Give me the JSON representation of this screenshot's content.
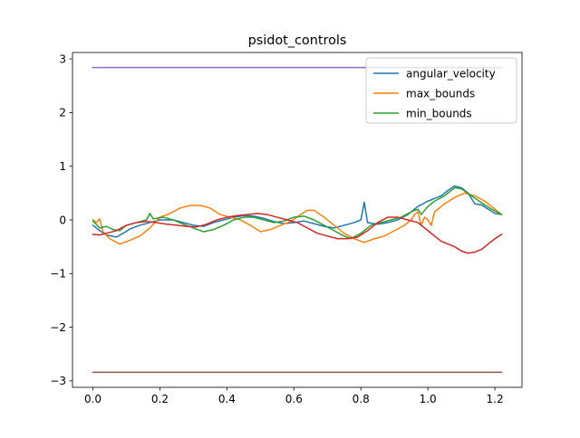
{
  "chart_data": {
    "type": "line",
    "title": "psidot_controls",
    "xlabel": "",
    "ylabel": "",
    "xlim": [
      -0.061,
      1.281
    ],
    "ylim": [
      -3.12,
      3.12
    ],
    "grid": false,
    "legend_position": "top-right",
    "x_ticks": [
      0.0,
      0.2,
      0.4,
      0.6,
      0.8,
      1.0,
      1.2
    ],
    "x_tick_labels": [
      "0.0",
      "0.2",
      "0.4",
      "0.6",
      "0.8",
      "1.0",
      "1.2"
    ],
    "y_ticks": [
      -3,
      -2,
      -1,
      0,
      1,
      2,
      3
    ],
    "y_tick_labels": [
      "−3",
      "−2",
      "−1",
      "0",
      "1",
      "2",
      "3"
    ],
    "legend": [
      "angular_velocity",
      "max_bounds",
      "min_bounds"
    ],
    "series": [
      {
        "name": "angular_velocity",
        "color": "#1f77b4",
        "points": [
          [
            0.0,
            -0.1
          ],
          [
            0.02,
            -0.2
          ],
          [
            0.04,
            -0.28
          ],
          [
            0.07,
            -0.32
          ],
          [
            0.09,
            -0.25
          ],
          [
            0.11,
            -0.17
          ],
          [
            0.14,
            -0.1
          ],
          [
            0.17,
            -0.05
          ],
          [
            0.2,
            0.0
          ],
          [
            0.24,
            0.0
          ],
          [
            0.27,
            -0.05
          ],
          [
            0.3,
            -0.1
          ],
          [
            0.33,
            -0.12
          ],
          [
            0.36,
            -0.05
          ],
          [
            0.39,
            0.0
          ],
          [
            0.42,
            0.05
          ],
          [
            0.45,
            0.08
          ],
          [
            0.48,
            0.07
          ],
          [
            0.51,
            0.03
          ],
          [
            0.54,
            -0.03
          ],
          [
            0.57,
            -0.07
          ],
          [
            0.6,
            -0.05
          ],
          [
            0.63,
            -0.02
          ],
          [
            0.66,
            -0.07
          ],
          [
            0.69,
            -0.12
          ],
          [
            0.72,
            -0.15
          ],
          [
            0.75,
            -0.1
          ],
          [
            0.78,
            -0.05
          ],
          [
            0.8,
            0.0
          ],
          [
            0.81,
            0.33
          ],
          [
            0.82,
            -0.05
          ],
          [
            0.85,
            -0.08
          ],
          [
            0.88,
            -0.05
          ],
          [
            0.91,
            0.0
          ],
          [
            0.94,
            0.1
          ],
          [
            0.97,
            0.25
          ],
          [
            1.0,
            0.35
          ],
          [
            1.02,
            0.4
          ],
          [
            1.04,
            0.45
          ],
          [
            1.06,
            0.55
          ],
          [
            1.08,
            0.63
          ],
          [
            1.1,
            0.6
          ],
          [
            1.12,
            0.5
          ],
          [
            1.13,
            0.4
          ],
          [
            1.14,
            0.3
          ],
          [
            1.16,
            0.28
          ],
          [
            1.18,
            0.2
          ],
          [
            1.2,
            0.12
          ],
          [
            1.22,
            0.1
          ]
        ]
      },
      {
        "name": "max_bounds",
        "color": "#ff7f0e",
        "points": [
          [
            0.0,
            0.0
          ],
          [
            0.01,
            -0.05
          ],
          [
            0.02,
            0.02
          ],
          [
            0.03,
            -0.22
          ],
          [
            0.05,
            -0.35
          ],
          [
            0.08,
            -0.45
          ],
          [
            0.11,
            -0.38
          ],
          [
            0.14,
            -0.3
          ],
          [
            0.17,
            -0.15
          ],
          [
            0.2,
            0.05
          ],
          [
            0.23,
            0.12
          ],
          [
            0.26,
            0.22
          ],
          [
            0.29,
            0.27
          ],
          [
            0.32,
            0.27
          ],
          [
            0.35,
            0.22
          ],
          [
            0.38,
            0.1
          ],
          [
            0.41,
            0.05
          ],
          [
            0.44,
            0.0
          ],
          [
            0.47,
            -0.1
          ],
          [
            0.5,
            -0.22
          ],
          [
            0.53,
            -0.18
          ],
          [
            0.56,
            -0.1
          ],
          [
            0.59,
            -0.03
          ],
          [
            0.62,
            0.1
          ],
          [
            0.64,
            0.18
          ],
          [
            0.66,
            0.18
          ],
          [
            0.69,
            0.05
          ],
          [
            0.72,
            -0.1
          ],
          [
            0.75,
            -0.25
          ],
          [
            0.78,
            -0.35
          ],
          [
            0.81,
            -0.42
          ],
          [
            0.84,
            -0.35
          ],
          [
            0.87,
            -0.3
          ],
          [
            0.9,
            -0.2
          ],
          [
            0.93,
            -0.1
          ],
          [
            0.95,
            0.0
          ],
          [
            0.96,
            0.1
          ],
          [
            0.97,
            0.15
          ],
          [
            0.98,
            -0.1
          ],
          [
            0.99,
            0.05
          ],
          [
            1.0,
            0.0
          ],
          [
            1.01,
            -0.1
          ],
          [
            1.02,
            0.15
          ],
          [
            1.05,
            0.3
          ],
          [
            1.08,
            0.42
          ],
          [
            1.11,
            0.5
          ],
          [
            1.14,
            0.45
          ],
          [
            1.17,
            0.35
          ],
          [
            1.2,
            0.2
          ],
          [
            1.22,
            0.1
          ]
        ]
      },
      {
        "name": "min_bounds",
        "color": "#2ca02c",
        "points": [
          [
            0.0,
            -0.02
          ],
          [
            0.02,
            -0.15
          ],
          [
            0.04,
            -0.12
          ],
          [
            0.06,
            -0.18
          ],
          [
            0.08,
            -0.2
          ],
          [
            0.1,
            -0.1
          ],
          [
            0.13,
            -0.05
          ],
          [
            0.16,
            0.0
          ],
          [
            0.17,
            0.12
          ],
          [
            0.18,
            0.02
          ],
          [
            0.21,
            0.05
          ],
          [
            0.24,
            0.0
          ],
          [
            0.27,
            -0.08
          ],
          [
            0.3,
            -0.15
          ],
          [
            0.33,
            -0.22
          ],
          [
            0.36,
            -0.18
          ],
          [
            0.39,
            -0.1
          ],
          [
            0.42,
            0.0
          ],
          [
            0.45,
            0.05
          ],
          [
            0.48,
            0.05
          ],
          [
            0.51,
            0.0
          ],
          [
            0.54,
            -0.05
          ],
          [
            0.57,
            -0.02
          ],
          [
            0.6,
            0.05
          ],
          [
            0.63,
            0.07
          ],
          [
            0.66,
            0.0
          ],
          [
            0.69,
            -0.1
          ],
          [
            0.72,
            -0.2
          ],
          [
            0.75,
            -0.3
          ],
          [
            0.77,
            -0.35
          ],
          [
            0.8,
            -0.25
          ],
          [
            0.83,
            -0.1
          ],
          [
            0.86,
            -0.05
          ],
          [
            0.89,
            0.0
          ],
          [
            0.92,
            0.05
          ],
          [
            0.95,
            0.15
          ],
          [
            0.97,
            0.2
          ],
          [
            0.98,
            0.1
          ],
          [
            1.0,
            0.25
          ],
          [
            1.02,
            0.35
          ],
          [
            1.05,
            0.45
          ],
          [
            1.08,
            0.6
          ],
          [
            1.1,
            0.58
          ],
          [
            1.13,
            0.45
          ],
          [
            1.16,
            0.32
          ],
          [
            1.19,
            0.2
          ],
          [
            1.22,
            0.1
          ]
        ]
      },
      {
        "color": "#d62728",
        "points": [
          [
            0.0,
            -0.27
          ],
          [
            0.02,
            -0.28
          ],
          [
            0.04,
            -0.25
          ],
          [
            0.07,
            -0.2
          ],
          [
            0.1,
            -0.1
          ],
          [
            0.13,
            -0.05
          ],
          [
            0.16,
            -0.03
          ],
          [
            0.19,
            -0.05
          ],
          [
            0.22,
            -0.08
          ],
          [
            0.25,
            -0.1
          ],
          [
            0.28,
            -0.12
          ],
          [
            0.31,
            -0.13
          ],
          [
            0.34,
            -0.08
          ],
          [
            0.37,
            0.0
          ],
          [
            0.4,
            0.05
          ],
          [
            0.43,
            0.08
          ],
          [
            0.46,
            0.1
          ],
          [
            0.49,
            0.12
          ],
          [
            0.52,
            0.1
          ],
          [
            0.55,
            0.05
          ],
          [
            0.58,
            0.0
          ],
          [
            0.61,
            -0.05
          ],
          [
            0.64,
            -0.15
          ],
          [
            0.67,
            -0.25
          ],
          [
            0.7,
            -0.3
          ],
          [
            0.73,
            -0.35
          ],
          [
            0.76,
            -0.35
          ],
          [
            0.79,
            -0.32
          ],
          [
            0.82,
            -0.2
          ],
          [
            0.85,
            -0.05
          ],
          [
            0.88,
            0.05
          ],
          [
            0.91,
            0.05
          ],
          [
            0.94,
            0.0
          ],
          [
            0.97,
            -0.05
          ],
          [
            1.0,
            -0.2
          ],
          [
            1.02,
            -0.3
          ],
          [
            1.04,
            -0.4
          ],
          [
            1.06,
            -0.45
          ],
          [
            1.08,
            -0.5
          ],
          [
            1.1,
            -0.58
          ],
          [
            1.12,
            -0.62
          ],
          [
            1.14,
            -0.6
          ],
          [
            1.16,
            -0.55
          ],
          [
            1.18,
            -0.45
          ],
          [
            1.2,
            -0.35
          ],
          [
            1.22,
            -0.27
          ]
        ]
      },
      {
        "color": "#9467bd",
        "points": [
          [
            0.0,
            2.84
          ],
          [
            1.22,
            2.84
          ]
        ]
      },
      {
        "color": "#8c564b",
        "points": [
          [
            0.0,
            -2.84
          ],
          [
            1.22,
            -2.84
          ]
        ]
      }
    ]
  }
}
